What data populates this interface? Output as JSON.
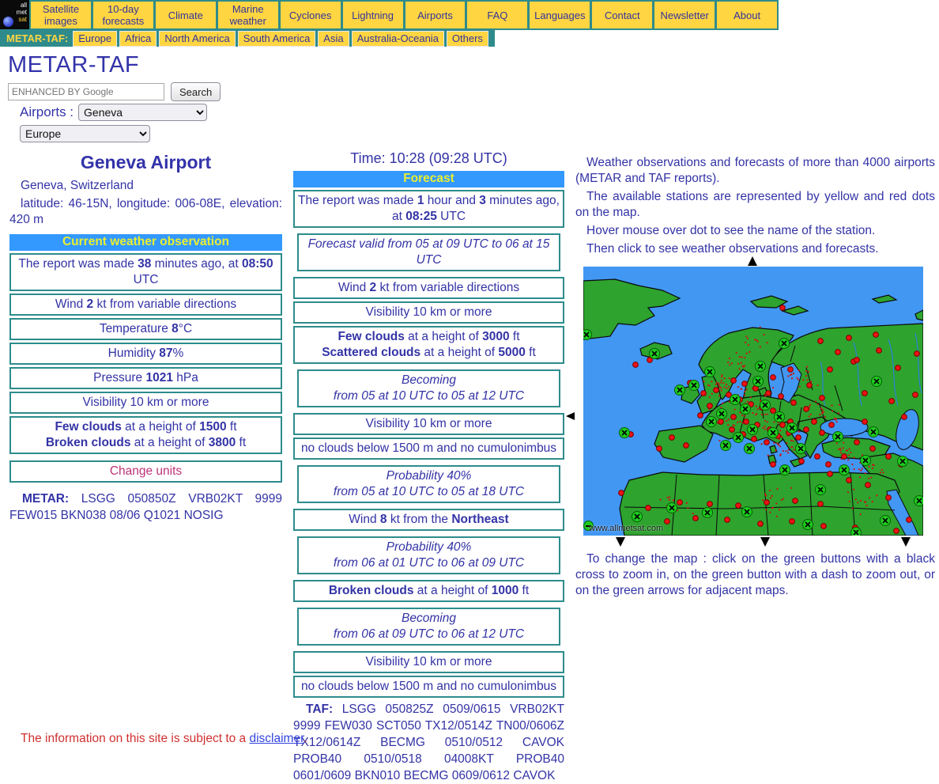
{
  "nav": {
    "logo_lines": [
      "all",
      "met",
      "sat"
    ],
    "items": [
      "Satellite images",
      "10-day forecasts",
      "Climate",
      "Marine weather",
      "Cyclones",
      "Lightning",
      "Airports",
      "FAQ",
      "Languages",
      "Contact",
      "Newsletter",
      "About"
    ],
    "metar_taf_label": "METAR-TAF:",
    "regions": [
      "Europe",
      "Africa",
      "North America",
      "South America",
      "Asia",
      "Australia-Oceania",
      "Others"
    ]
  },
  "page": {
    "title": "METAR-TAF"
  },
  "search": {
    "placeholder": "ENHANCED BY Google",
    "button": "Search"
  },
  "selectors": {
    "airports_label": "Airports :",
    "airport_value": "Geneva",
    "region_value": "Europe"
  },
  "station": {
    "name": "Geneva Airport",
    "location": "Geneva, Switzerland",
    "coords": "latitude: 46-15N, longitude: 006-08E, elevation: 420 m",
    "metar": "**METAR:** LSGG 050850Z VRB02KT 9999 FEW015 BKN038 08/06 Q1021 NOSIG"
  },
  "observation": {
    "header": "Current weather observation",
    "rows": [
      {
        "text": "The report was made **38** minutes ago, at **08:50** UTC"
      },
      {
        "text": "Wind **2** kt from variable directions"
      },
      {
        "text": "Temperature **8**°C"
      },
      {
        "text": "Humidity **87**%"
      },
      {
        "text": "Pressure **1021** hPa"
      },
      {
        "text": "Visibility 10 km or more"
      },
      {
        "text": "**Few clouds** at a height of **1500** ft\n**Broken clouds** at a height of **3800** ft"
      }
    ],
    "change_units": "Change units"
  },
  "forecast": {
    "time_line": "Time: 10:28 (09:28 UTC)",
    "header": "Forecast",
    "rows": [
      {
        "text": "The report was made **1** hour and **3** minutes ago, at **08:25** UTC"
      },
      {
        "text": "Forecast valid from 05 at 09 UTC to 06 at 15 UTC",
        "italic": true
      },
      {
        "text": "Wind **2** kt from variable directions"
      },
      {
        "text": "Visibility 10 km or more"
      },
      {
        "text": "**Few clouds** at a height of **3000** ft\n**Scattered clouds** at a height of **5000** ft"
      },
      {
        "text": "Becoming\nfrom 05 at 10 UTC to 05 at 12 UTC",
        "italic": true
      },
      {
        "text": "Visibility 10 km or more"
      },
      {
        "text": "no clouds below 1500 m and no cumulonimbus"
      },
      {
        "text": "Probability 40%\nfrom 05 at 10 UTC to 05 at 18 UTC",
        "italic": true
      },
      {
        "text": "Wind **8** kt from the **Northeast**"
      },
      {
        "text": "Probability 40%\nfrom 06 at 01 UTC to 06 at 09 UTC",
        "italic": true
      },
      {
        "text": "**Broken clouds** at a height of **1000** ft"
      },
      {
        "text": "Becoming\nfrom 06 at 09 UTC to 06 at 12 UTC",
        "italic": true
      },
      {
        "text": "Visibility 10 km or more"
      },
      {
        "text": "no clouds below 1500 m and no cumulonimbus"
      }
    ],
    "taf": "**TAF:** LSGG 050825Z 0509/0615 VRB02KT 9999 FEW030 SCT050 TX12/0514Z TN00/0606Z TX12/0614Z BECMG 0510/0512 CAVOK PROB40 0510/0518 04008KT PROB40 0601/0609 BKN010 BECMG 0609/0612 CAVOK"
  },
  "map_help": {
    "p1": "Weather observations and forecasts of more than 4000 airports (METAR and TAF reports).",
    "p2": "The available stations are represented by yellow and red dots on the map.",
    "p3": "Hover mouse over dot to see the name of the station.",
    "p4": "Then click to see weather observations and forecasts.",
    "instruction": "To change the map : click on the green buttons with a black cross to zoom in, on the green button with a dash to zoom out, or on the green arrows for adjacent maps.",
    "watermark": "www.allmetsat.com"
  },
  "map_colors": {
    "ocean": "#4297F2",
    "land": "#2EA32E",
    "station_dot": "#EC1212",
    "zoom_button": "#1FCC1F",
    "border": "#0a0a0a"
  },
  "theme": {
    "nav_teal": "#2F8B8B",
    "tab_yellow": "#FFD542",
    "text_navy": "#3333A6",
    "box_border_teal": "#2E8C8C",
    "header_blue": "#3399FF",
    "header_text_yellow": "#E9EF2F",
    "link_crimson": "#BB3377"
  },
  "footer": {
    "text_prefix": "The information on this site is subject to a ",
    "link": "disclaimer",
    "suffix": "."
  }
}
